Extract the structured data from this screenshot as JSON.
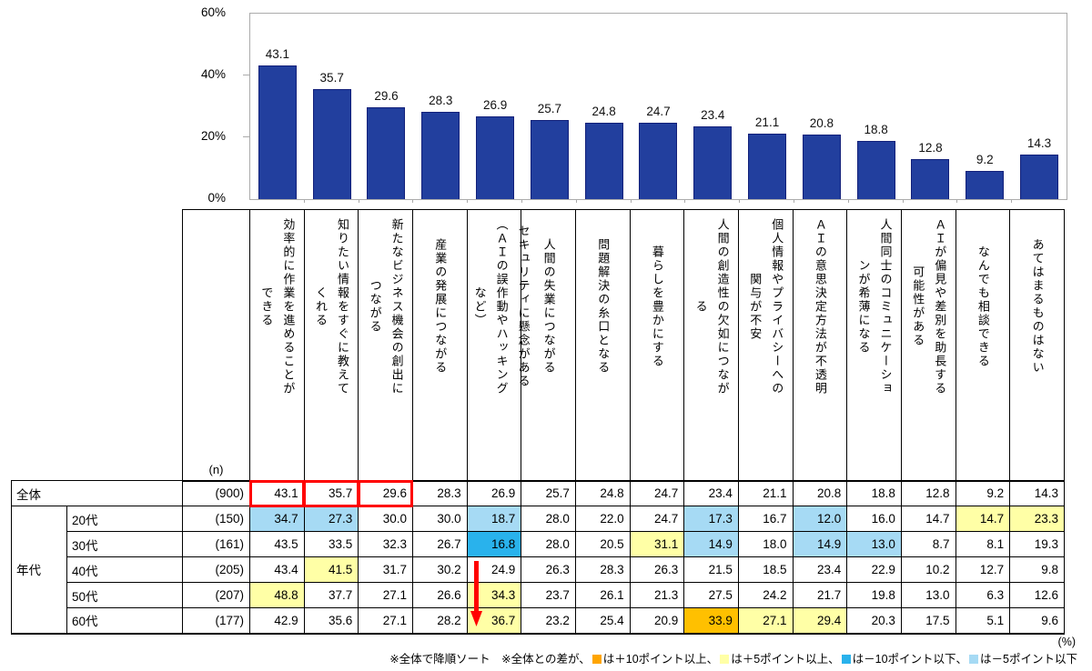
{
  "chart_data": {
    "type": "bar",
    "title": "",
    "categories": [
      "効率的に作業を進めることができる",
      "知りたい情報をすぐに教えてくれる",
      "新たなビジネス機会の創出につながる",
      "産業の発展につながる",
      "セキュリティに懸念がある（ＡＩの誤作動やハッキングなど）",
      "人間の失業につながる",
      "問題解決の糸口となる",
      "暮らしを豊かにする",
      "人間の創造性の欠如につながる",
      "個人情報やプライバシーへの関与が不安",
      "ＡＩの意思決定方法が不透明",
      "人間同士のコミュニケーションが希薄になる",
      "ＡＩが偏見や差別を助長する可能性がある",
      "なんでも相談できる",
      "あてはまるものはない"
    ],
    "series": [
      {
        "name": "全体(n=900)",
        "values": [
          43.1,
          35.7,
          29.6,
          28.3,
          26.9,
          25.7,
          24.8,
          24.7,
          23.4,
          21.1,
          20.8,
          18.8,
          12.8,
          9.2,
          14.3
        ]
      }
    ],
    "ylim": [
      0,
      60
    ],
    "yticks": [
      {
        "label": "60%",
        "value": 60
      },
      {
        "label": "40%",
        "value": 40
      },
      {
        "label": "20%",
        "value": 20
      },
      {
        "label": "0%",
        "value": 0
      }
    ],
    "grid": false,
    "legend_position": "left-middle",
    "bar_color": "#223F9E"
  },
  "legend": {
    "label": "全体(n=900)",
    "swatch_color": "#223F9E"
  },
  "table": {
    "n_header": "(n)",
    "group_label": "年代",
    "rows": [
      {
        "type": "total",
        "label": "全体",
        "n": "(900)",
        "values": [
          43.1,
          35.7,
          29.6,
          28.3,
          26.9,
          25.7,
          24.8,
          24.7,
          23.4,
          21.1,
          20.8,
          18.8,
          12.8,
          9.2,
          14.3
        ],
        "highlights": [
          "",
          "",
          "",
          "",
          "",
          "",
          "",
          "",
          "",
          "",
          "",
          "",
          "",
          "",
          ""
        ],
        "outlined": [
          0,
          1,
          2
        ]
      },
      {
        "type": "age",
        "label": "20代",
        "n": "(150)",
        "values": [
          34.7,
          27.3,
          30.0,
          30.0,
          18.7,
          28.0,
          22.0,
          24.7,
          17.3,
          16.7,
          12.0,
          16.0,
          14.7,
          14.7,
          23.3
        ],
        "highlights": [
          "m5",
          "m5",
          "",
          "",
          "m5",
          "",
          "",
          "",
          "m5",
          "",
          "m5",
          "",
          "",
          "p5",
          "p5"
        ]
      },
      {
        "type": "age",
        "label": "30代",
        "n": "(161)",
        "values": [
          43.5,
          33.5,
          32.3,
          26.7,
          16.8,
          28.0,
          20.5,
          31.1,
          14.9,
          18.0,
          14.9,
          13.0,
          8.7,
          8.1,
          19.3
        ],
        "highlights": [
          "",
          "",
          "",
          "",
          "m10",
          "",
          "",
          "p5",
          "m5",
          "",
          "m5",
          "m5",
          "",
          "",
          ""
        ]
      },
      {
        "type": "age",
        "label": "40代",
        "n": "(205)",
        "values": [
          43.4,
          41.5,
          31.7,
          30.2,
          24.9,
          26.3,
          28.3,
          26.3,
          21.5,
          18.5,
          23.4,
          22.9,
          10.2,
          12.7,
          9.8
        ],
        "highlights": [
          "",
          "p5",
          "",
          "",
          "",
          "",
          "",
          "",
          "",
          "",
          "",
          "",
          "",
          "",
          ""
        ]
      },
      {
        "type": "age",
        "label": "50代",
        "n": "(207)",
        "values": [
          48.8,
          37.7,
          27.1,
          26.6,
          34.3,
          23.7,
          26.1,
          21.3,
          27.5,
          24.2,
          21.7,
          19.8,
          13.0,
          6.3,
          12.6
        ],
        "highlights": [
          "p5",
          "",
          "",
          "",
          "p5",
          "",
          "",
          "",
          "",
          "",
          "",
          "",
          "",
          "",
          ""
        ]
      },
      {
        "type": "age",
        "label": "60代",
        "n": "(177)",
        "values": [
          42.9,
          35.6,
          27.1,
          28.2,
          36.7,
          23.2,
          25.4,
          20.9,
          33.9,
          27.1,
          29.4,
          20.3,
          17.5,
          5.1,
          9.6
        ],
        "highlights": [
          "",
          "",
          "",
          "",
          "p5",
          "",
          "",
          "",
          "p10",
          "p5",
          "p5",
          "",
          "",
          "",
          ""
        ]
      }
    ]
  },
  "highlight_colors": {
    "p10": "#FFC000",
    "p5": "#FFFFA6",
    "m10": "#29B2EC",
    "m5": "#A6DAF4"
  },
  "annotations": {
    "red_box_color": "#FF0000",
    "arrow": {
      "color": "#FF0000",
      "direction": "down",
      "column": "セキュリティに懸念がある（ＡＩの誤作動やハッキングなど）",
      "rows": "40代〜60代"
    }
  },
  "footer": {
    "unit_label": "(%)",
    "note_prefix": "※全体で降順ソート　※全体との差が、",
    "note_items": [
      {
        "swatch": "#FFA500",
        "text": "は＋10ポイント以上、"
      },
      {
        "swatch": "#FFFFA6",
        "text": "は＋5ポイント以上、"
      },
      {
        "swatch": "#29B2EC",
        "text": "は－10ポイント以下、"
      },
      {
        "swatch": "#A6DAF4",
        "text": "は－5ポイント以下"
      }
    ]
  }
}
